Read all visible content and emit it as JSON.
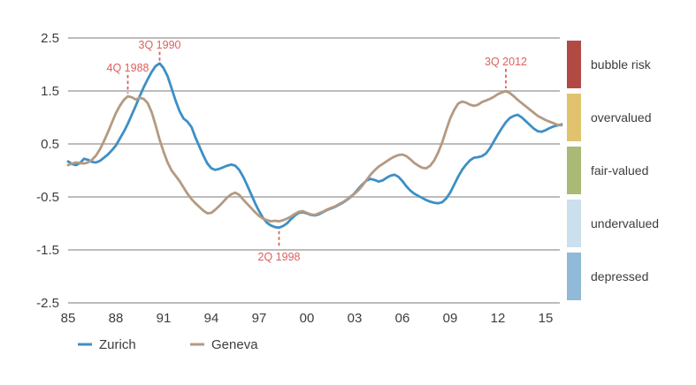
{
  "chart_data": {
    "type": "line",
    "title": "",
    "xlabel": "",
    "ylabel": "",
    "xlim": [
      1985,
      2016
    ],
    "ylim": [
      -2.5,
      2.5
    ],
    "grid": "horizontal",
    "grid_color": "#a6a6a6",
    "tick_color": "#3d3d3d",
    "annotation_color": "#dd605b",
    "legend_position": "bottom-left",
    "y_ticks": [
      "2.5",
      "1.5",
      "0.5",
      "-0.5",
      "-1.5",
      "-2.5"
    ],
    "y_tick_values": [
      2.5,
      1.5,
      0.5,
      -0.5,
      -1.5,
      -2.5
    ],
    "x_ticks": [
      "85",
      "88",
      "91",
      "94",
      "97",
      "00",
      "03",
      "06",
      "09",
      "12",
      "15"
    ],
    "x_tick_values": [
      1985,
      1988,
      1991,
      1994,
      1997,
      2000,
      2003,
      2006,
      2009,
      2012,
      2015
    ],
    "x_start": 1985.0,
    "x_step": 0.25,
    "series": [
      {
        "name": "Zurich",
        "color": "#3e8fc5",
        "values": [
          0.17,
          0.12,
          0.1,
          0.14,
          0.22,
          0.2,
          0.16,
          0.15,
          0.18,
          0.24,
          0.3,
          0.38,
          0.47,
          0.6,
          0.73,
          0.88,
          1.05,
          1.22,
          1.4,
          1.57,
          1.72,
          1.86,
          1.97,
          2.02,
          1.93,
          1.78,
          1.55,
          1.32,
          1.12,
          0.98,
          0.92,
          0.82,
          0.62,
          0.45,
          0.28,
          0.13,
          0.04,
          0.01,
          0.03,
          0.06,
          0.09,
          0.11,
          0.09,
          0.01,
          -0.12,
          -0.28,
          -0.45,
          -0.62,
          -0.77,
          -0.9,
          -0.99,
          -1.04,
          -1.07,
          -1.08,
          -1.05,
          -1.0,
          -0.92,
          -0.85,
          -0.8,
          -0.79,
          -0.81,
          -0.84,
          -0.85,
          -0.83,
          -0.79,
          -0.75,
          -0.72,
          -0.69,
          -0.65,
          -0.61,
          -0.56,
          -0.5,
          -0.43,
          -0.34,
          -0.26,
          -0.19,
          -0.16,
          -0.18,
          -0.21,
          -0.19,
          -0.14,
          -0.1,
          -0.08,
          -0.12,
          -0.2,
          -0.3,
          -0.38,
          -0.44,
          -0.48,
          -0.52,
          -0.56,
          -0.59,
          -0.61,
          -0.62,
          -0.6,
          -0.53,
          -0.42,
          -0.27,
          -0.12,
          0.01,
          0.11,
          0.19,
          0.24,
          0.25,
          0.27,
          0.32,
          0.42,
          0.55,
          0.68,
          0.8,
          0.91,
          0.99,
          1.03,
          1.05,
          1.0,
          0.93,
          0.86,
          0.79,
          0.74,
          0.73,
          0.76,
          0.8,
          0.83,
          0.85,
          0.87
        ]
      },
      {
        "name": "Geneva",
        "color": "#b49a82",
        "values": [
          0.1,
          0.13,
          0.15,
          0.14,
          0.13,
          0.15,
          0.2,
          0.28,
          0.4,
          0.55,
          0.72,
          0.9,
          1.08,
          1.22,
          1.33,
          1.4,
          1.38,
          1.34,
          1.37,
          1.35,
          1.27,
          1.1,
          0.85,
          0.58,
          0.35,
          0.15,
          0.0,
          -0.1,
          -0.2,
          -0.32,
          -0.44,
          -0.54,
          -0.62,
          -0.69,
          -0.76,
          -0.81,
          -0.8,
          -0.74,
          -0.67,
          -0.59,
          -0.51,
          -0.45,
          -0.42,
          -0.46,
          -0.55,
          -0.63,
          -0.71,
          -0.79,
          -0.86,
          -0.91,
          -0.94,
          -0.96,
          -0.95,
          -0.96,
          -0.94,
          -0.91,
          -0.87,
          -0.82,
          -0.78,
          -0.77,
          -0.8,
          -0.83,
          -0.84,
          -0.81,
          -0.78,
          -0.74,
          -0.71,
          -0.68,
          -0.64,
          -0.6,
          -0.55,
          -0.49,
          -0.44,
          -0.37,
          -0.28,
          -0.18,
          -0.08,
          0.0,
          0.07,
          0.12,
          0.17,
          0.22,
          0.26,
          0.29,
          0.3,
          0.27,
          0.21,
          0.14,
          0.09,
          0.05,
          0.04,
          0.09,
          0.19,
          0.34,
          0.53,
          0.76,
          0.98,
          1.14,
          1.26,
          1.3,
          1.28,
          1.24,
          1.22,
          1.24,
          1.29,
          1.32,
          1.35,
          1.39,
          1.44,
          1.47,
          1.5,
          1.46,
          1.4,
          1.33,
          1.27,
          1.21,
          1.15,
          1.09,
          1.03,
          0.99,
          0.95,
          0.92,
          0.89,
          0.86,
          0.85
        ]
      }
    ],
    "annotations": [
      {
        "label": "4Q 1988",
        "x": 1988.75,
        "y": 1.4,
        "side": "above",
        "offset": 28
      },
      {
        "label": "3Q 1990",
        "x": 1990.75,
        "y": 2.02,
        "side": "above",
        "offset": 17
      },
      {
        "label": "2Q 1998",
        "x": 1998.25,
        "y": -1.08,
        "side": "below",
        "offset": 37
      },
      {
        "label": "3Q 2012",
        "x": 2012.5,
        "y": 1.5,
        "side": "above",
        "offset": 29
      }
    ],
    "zones": [
      {
        "label": "bubble risk",
        "color": "#b24a44",
        "from": 1.5,
        "to": 2.5
      },
      {
        "label": "overvalued",
        "color": "#e1c26e",
        "from": 0.5,
        "to": 1.5
      },
      {
        "label": "fair-valued",
        "color": "#a9ba76",
        "from": -0.5,
        "to": 0.5
      },
      {
        "label": "undervalued",
        "color": "#cbdfec",
        "from": -1.5,
        "to": -0.5
      },
      {
        "label": "depressed",
        "color": "#90bad8",
        "from": -2.5,
        "to": -1.5
      }
    ],
    "legend": [
      {
        "label": "Zurich"
      },
      {
        "label": "Geneva"
      }
    ]
  }
}
